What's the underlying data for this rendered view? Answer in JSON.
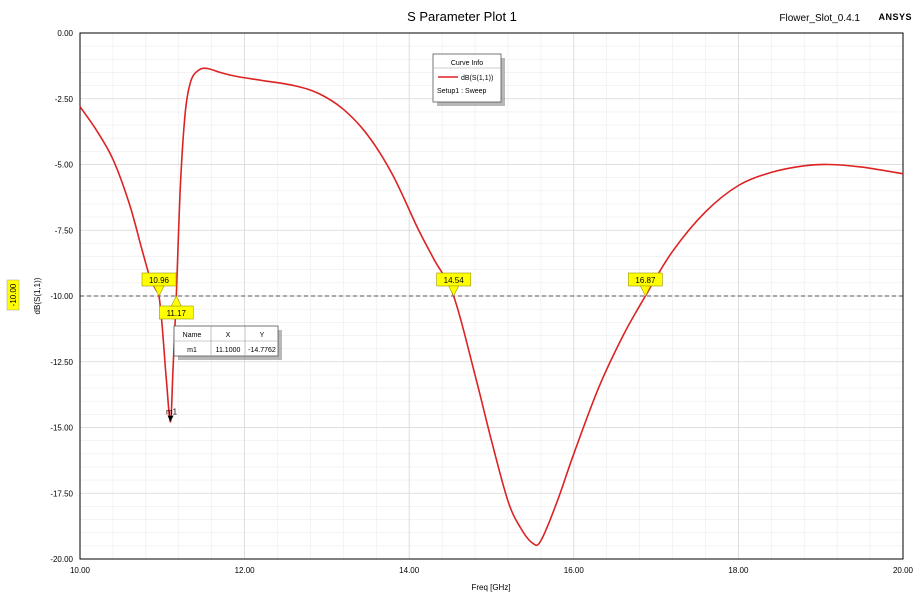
{
  "header": {
    "title": "S Parameter Plot 1",
    "project": "Flower_Slot_0.4.1",
    "brand": "ANSYS"
  },
  "colors": {
    "curve": "#dd2222",
    "marker_fill": "#ffff00",
    "grid": "#d7d7d7",
    "frame": "#000000"
  },
  "chart_data": {
    "type": "line",
    "title": "S Parameter Plot 1",
    "xlabel": "Freq [GHz]",
    "ylabel": "dB(S(1,1))",
    "xlim": [
      10,
      20
    ],
    "ylim": [
      -20,
      0
    ],
    "x_ticks": [
      "10.00",
      "12.00",
      "14.00",
      "16.00",
      "18.00",
      "20.00"
    ],
    "y_ticks": [
      "0.00",
      "-2.50",
      "-5.00",
      "-7.50",
      "-10.00",
      "-12.50",
      "-15.00",
      "-17.50",
      "-20.00"
    ],
    "grid": true,
    "legend_position": "top-center",
    "series": [
      {
        "name": "dB(S(1,1))",
        "x": [
          10.0,
          10.2,
          10.4,
          10.6,
          10.75,
          10.85,
          10.93,
          10.96,
          11.0,
          11.05,
          11.1,
          11.13,
          11.17,
          11.22,
          11.28,
          11.35,
          11.45,
          11.55,
          11.7,
          11.9,
          12.2,
          12.6,
          12.9,
          13.2,
          13.5,
          13.8,
          14.1,
          14.3,
          14.54,
          14.8,
          15.0,
          15.2,
          15.35,
          15.5,
          15.6,
          15.8,
          16.0,
          16.3,
          16.6,
          16.87,
          17.2,
          17.6,
          18.0,
          18.4,
          18.8,
          19.1,
          19.5,
          20.0
        ],
        "y": [
          -2.8,
          -3.7,
          -4.8,
          -6.5,
          -8.2,
          -9.3,
          -9.8,
          -10.0,
          -11.2,
          -13.2,
          -14.78,
          -12.8,
          -10.0,
          -5.8,
          -3.0,
          -1.8,
          -1.4,
          -1.35,
          -1.5,
          -1.65,
          -1.8,
          -2.0,
          -2.3,
          -2.9,
          -3.9,
          -5.4,
          -7.4,
          -8.6,
          -10.0,
          -13.0,
          -15.5,
          -17.8,
          -18.8,
          -19.4,
          -19.3,
          -17.8,
          -16.0,
          -13.5,
          -11.5,
          -10.0,
          -8.3,
          -6.8,
          -5.8,
          -5.3,
          -5.05,
          -5.0,
          -5.1,
          -5.35
        ]
      }
    ],
    "reference_line": {
      "y": -10.0,
      "label": "-10.00"
    },
    "markers": [
      {
        "label": "10.96",
        "x": 10.96,
        "y": -10.0
      },
      {
        "label": "11.17",
        "x": 11.17,
        "y": -10.0
      },
      {
        "label": "14.54",
        "x": 14.54,
        "y": -10.0
      },
      {
        "label": "16.87",
        "x": 16.87,
        "y": -10.0
      }
    ],
    "m1": {
      "name": "m1",
      "x": 11.1,
      "y": -14.7762
    }
  },
  "legend": {
    "title": "Curve Info",
    "entry": "dB(S(1,1))",
    "sub": "Setup1 : Sweep"
  },
  "marker_table": {
    "headers": [
      "Name",
      "X",
      "Y"
    ],
    "row": [
      "m1",
      "11.1000",
      "-14.7762"
    ]
  }
}
